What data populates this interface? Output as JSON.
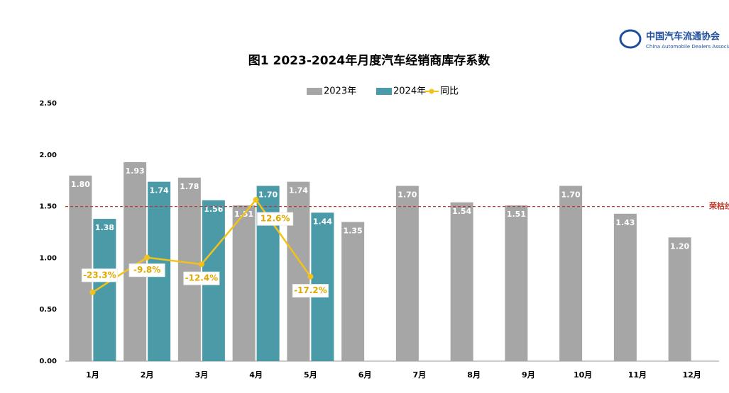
{
  "brand": {
    "name": "中国汽车流通协会",
    "english": "China Automobile Dealers Association"
  },
  "chart_data": {
    "type": "bar",
    "title": "图1  2023-2024年月度汽车经销商库存系数",
    "categories": [
      "1月",
      "2月",
      "3月",
      "4月",
      "5月",
      "6月",
      "7月",
      "8月",
      "9月",
      "10月",
      "11月",
      "12月"
    ],
    "series": [
      {
        "name": "2023年",
        "color": "#a6a6a6",
        "values": [
          1.8,
          1.93,
          1.78,
          1.51,
          1.74,
          1.35,
          1.7,
          1.54,
          1.51,
          1.7,
          1.43,
          1.2
        ],
        "value_labels": [
          "1.80",
          "1.93",
          "1.78",
          "1.51",
          "1.74",
          "1.35",
          "1.70",
          "1.54",
          "1.51",
          "1.70",
          "1.43",
          "1.20"
        ]
      },
      {
        "name": "2024年",
        "color": "#4a9aa8",
        "values": [
          1.38,
          1.74,
          1.56,
          1.7,
          1.44,
          null,
          null,
          null,
          null,
          null,
          null,
          null
        ],
        "value_labels": [
          "1.38",
          "1.74",
          "1.56",
          "1.70",
          "1.44",
          null,
          null,
          null,
          null,
          null,
          null,
          null
        ]
      },
      {
        "name": "同比",
        "type": "line",
        "axis": "y2",
        "color": "#f2c21b",
        "values": [
          -23.3,
          -9.8,
          -12.4,
          12.6,
          -17.2,
          null,
          null,
          null,
          null,
          null,
          null,
          null
        ],
        "value_labels": [
          "-23.3%",
          "-9.8%",
          "-12.4%",
          "12.6%",
          "-17.2%",
          null,
          null,
          null,
          null,
          null,
          null,
          null
        ]
      }
    ],
    "ylim": [
      0,
      2.5
    ],
    "yticks": [
      {
        "value": 0,
        "label": "0.00"
      },
      {
        "value": 0.5,
        "label": "0.50"
      },
      {
        "value": 1,
        "label": "1.00"
      },
      {
        "value": 1.5,
        "label": "1.50"
      },
      {
        "value": 2,
        "label": "2.00"
      },
      {
        "value": 2.5,
        "label": "2.50"
      }
    ],
    "y2lim": [
      -50,
      50
    ],
    "reference_line": {
      "value": 1.5,
      "label": "荣枯线",
      "color": "#c0392b"
    },
    "grid": false
  }
}
